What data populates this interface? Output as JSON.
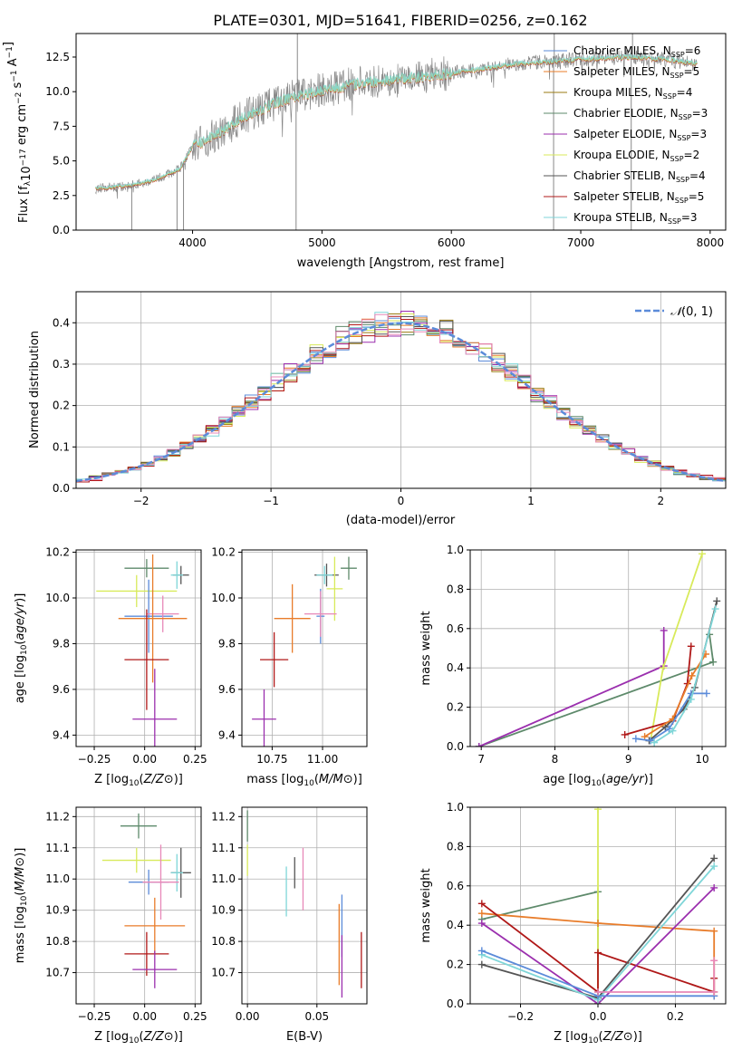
{
  "colors": {
    "chabrier_miles": "#5b8bd9",
    "salpeter_miles": "#e87c2a",
    "kroupa_miles": "#9a7a10",
    "chabrier_elodie": "#5e8a6b",
    "salpeter_elodie": "#9b2fae",
    "kroupa_elodie": "#d8ea5a",
    "chabrier_stelib": "#555555",
    "salpeter_stelib": "#b01818",
    "kroupa_stelib": "#7fd6d8",
    "pink": "#e888b8",
    "data_gray": "#888888",
    "gauss": "#5b8bd9"
  },
  "chart_data": [
    {
      "id": "spectrum",
      "type": "line",
      "title": "PLATE=0301, MJD=51641, FIBERID=0256, z=0.162",
      "xlabel": "wavelength [Angstrom, rest frame]",
      "ylabel_parts": [
        "Flux [f",
        "λ",
        "10",
        "−17",
        " erg cm",
        "−2",
        " s",
        "−1",
        " A",
        "−1",
        "]"
      ],
      "xlim": [
        3100,
        8120
      ],
      "ylim": [
        0,
        14.2
      ],
      "xticks": [
        4000,
        5000,
        6000,
        7000,
        8000
      ],
      "yticks": [
        "0.0",
        "2.5",
        "5.0",
        "7.5",
        "10.0",
        "12.5"
      ],
      "ytick_values": [
        0,
        2.5,
        5,
        7.5,
        10,
        12.5
      ],
      "grid": false,
      "legend": "top-right",
      "legend_entries": [
        {
          "label": "Chabrier MILES, N",
          "sub": "SSP",
          "tail": "=6",
          "color": "#5b8bd9"
        },
        {
          "label": "Salpeter MILES, N",
          "sub": "SSP",
          "tail": "=5",
          "color": "#e87c2a"
        },
        {
          "label": "Kroupa MILES, N",
          "sub": "SSP",
          "tail": "=4",
          "color": "#9a7a10"
        },
        {
          "label": "Chabrier ELODIE, N",
          "sub": "SSP",
          "tail": "=3",
          "color": "#5e8a6b"
        },
        {
          "label": "Salpeter ELODIE, N",
          "sub": "SSP",
          "tail": "=3",
          "color": "#9b2fae"
        },
        {
          "label": "Kroupa ELODIE, N",
          "sub": "SSP",
          "tail": "=2",
          "color": "#d8ea5a"
        },
        {
          "label": "Chabrier STELIB, N",
          "sub": "SSP",
          "tail": "=4",
          "color": "#555555"
        },
        {
          "label": "Salpeter STELIB, N",
          "sub": "SSP",
          "tail": "=5",
          "color": "#b01818"
        },
        {
          "label": "Kroupa STELIB, N",
          "sub": "SSP",
          "tail": "=3",
          "color": "#7fd6d8"
        }
      ],
      "continuum": {
        "x": [
          3250,
          3500,
          3700,
          3900,
          4000,
          4200,
          4400,
          4700,
          5000,
          5300,
          5600,
          5900,
          6200,
          6500,
          6800,
          7100,
          7400,
          7700,
          7900
        ],
        "y": [
          3.0,
          3.2,
          3.6,
          4.4,
          6.0,
          7.0,
          8.2,
          9.4,
          10.1,
          10.6,
          10.9,
          11.2,
          11.6,
          12.0,
          12.2,
          12.4,
          12.5,
          12.3,
          12.0
        ]
      },
      "spikes": [
        {
          "x": 3530,
          "y": 0
        },
        {
          "x": 3880,
          "y": 0
        },
        {
          "x": 3930,
          "y": 0
        },
        {
          "x": 4800,
          "y": 0
        },
        {
          "x": 4810,
          "y": 14.2
        },
        {
          "x": 6790,
          "y": 0
        },
        {
          "x": 6795,
          "y": 14.2
        },
        {
          "x": 7390,
          "y": 0
        },
        {
          "x": 7400,
          "y": 14.2
        }
      ]
    },
    {
      "id": "residuals",
      "type": "line",
      "xlabel": "(data-model)/error",
      "ylabel": "Normed distribution",
      "xlim": [
        -2.5,
        2.5
      ],
      "ylim": [
        0,
        0.475
      ],
      "xticks": [
        "−2",
        "−1",
        "0",
        "1",
        "2"
      ],
      "xtick_values": [
        -2,
        -1,
        0,
        1,
        2
      ],
      "yticks": [
        "0.0",
        "0.1",
        "0.2",
        "0.3",
        "0.4"
      ],
      "ytick_values": [
        0,
        0.1,
        0.2,
        0.3,
        0.4
      ],
      "grid": true,
      "legend": "top-right",
      "gauss_label": "𝒩(0, 1)",
      "gauss_label_text": "(0, 1)",
      "bin_width": 0.1
    },
    {
      "id": "age_vs_Z",
      "type": "scatter",
      "xlabel": "Z [log10(Z/Z⊙)]",
      "ylabel": "age  [log10(age/yr)]",
      "xlim": [
        -0.34,
        0.28
      ],
      "ylim": [
        9.35,
        10.21
      ],
      "xticks": [
        "−0.25",
        "0.00",
        "0.25"
      ],
      "xtick_values": [
        -0.25,
        0,
        0.25
      ],
      "yticks": [
        "9.4",
        "9.6",
        "9.8",
        "10.0",
        "10.2"
      ],
      "ytick_values": [
        9.4,
        9.6,
        9.8,
        10.0,
        10.2
      ],
      "grid": true,
      "points": [
        {
          "x": 0.01,
          "y": 10.13,
          "xerr": 0.11,
          "yerr": 0.04,
          "color": "#5e8a6b"
        },
        {
          "x": 0.18,
          "y": 10.1,
          "xerr": 0.04,
          "yerr": 0.04,
          "color": "#555555"
        },
        {
          "x": 0.16,
          "y": 10.1,
          "xerr": 0.03,
          "yerr": 0.06,
          "color": "#7fd6d8"
        },
        {
          "x": -0.04,
          "y": 10.03,
          "xerr": 0.2,
          "yerr": 0.07,
          "color": "#d8ea5a"
        },
        {
          "x": 0.02,
          "y": 9.92,
          "xerr": 0.12,
          "yerr": 0.16,
          "color": "#5b8bd9"
        },
        {
          "x": 0.09,
          "y": 9.93,
          "xerr": 0.08,
          "yerr": 0.08,
          "color": "#e888b8"
        },
        {
          "x": 0.04,
          "y": 9.91,
          "xerr": 0.17,
          "yerr": 0.28,
          "color": "#e87c2a"
        },
        {
          "x": 0.01,
          "y": 9.73,
          "xerr": 0.11,
          "yerr": 0.22,
          "color": "#b01818"
        },
        {
          "x": 0.05,
          "y": 9.47,
          "xerr": 0.11,
          "yerr": 0.22,
          "color": "#9b2fae"
        }
      ]
    },
    {
      "id": "age_vs_mass",
      "type": "scatter",
      "xlabel": "mass [log10(M/M⊙)]",
      "xlim": [
        10.6,
        11.22
      ],
      "ylim": [
        9.35,
        10.21
      ],
      "xticks": [
        "10.75",
        "11.00"
      ],
      "xtick_values": [
        10.75,
        11.0
      ],
      "yticks": [
        "9.4",
        "9.6",
        "9.8",
        "10.0",
        "10.2"
      ],
      "ytick_values": [
        9.4,
        9.6,
        9.8,
        10.0,
        10.2
      ],
      "grid": true,
      "points": [
        {
          "x": 11.13,
          "y": 10.13,
          "xerr": 0.04,
          "yerr": 0.05,
          "color": "#5e8a6b"
        },
        {
          "x": 11.02,
          "y": 10.1,
          "xerr": 0.06,
          "yerr": 0.05,
          "color": "#555555"
        },
        {
          "x": 11.01,
          "y": 10.1,
          "xerr": 0.04,
          "yerr": 0.04,
          "color": "#7fd6d8"
        },
        {
          "x": 11.06,
          "y": 10.04,
          "xerr": 0.04,
          "yerr": 0.14,
          "color": "#d8ea5a"
        },
        {
          "x": 10.99,
          "y": 9.92,
          "xerr": 0.02,
          "yerr": 0.12,
          "color": "#5b8bd9"
        },
        {
          "x": 10.99,
          "y": 9.93,
          "xerr": 0.08,
          "yerr": 0.1,
          "color": "#e888b8"
        },
        {
          "x": 10.85,
          "y": 9.91,
          "xerr": 0.09,
          "yerr": 0.15,
          "color": "#e87c2a"
        },
        {
          "x": 10.76,
          "y": 9.73,
          "xerr": 0.07,
          "yerr": 0.12,
          "color": "#b01818"
        },
        {
          "x": 10.71,
          "y": 9.47,
          "xerr": 0.06,
          "yerr": 0.13,
          "color": "#9b2fae"
        }
      ]
    },
    {
      "id": "weight_vs_age",
      "type": "line",
      "xlabel": "age  [log10(age/yr)]",
      "ylabel": "mass weight",
      "xlim": [
        6.85,
        10.32
      ],
      "ylim": [
        0,
        1.0
      ],
      "xticks": [
        "7",
        "8",
        "9",
        "10"
      ],
      "xtick_values": [
        7,
        8,
        9,
        10
      ],
      "yticks": [
        "0.0",
        "0.2",
        "0.4",
        "0.6",
        "0.8",
        "1.0"
      ],
      "ytick_values": [
        0,
        0.2,
        0.4,
        0.6,
        0.8,
        1.0
      ],
      "grid": true,
      "series": [
        {
          "color": "#5e8a6b",
          "x": [
            6.97,
            10.15,
            10.1
          ],
          "y": [
            0.0,
            0.43,
            0.57
          ]
        },
        {
          "color": "#9b2fae",
          "x": [
            6.97,
            9.48,
            9.48
          ],
          "y": [
            0.0,
            0.41,
            0.59
          ]
        },
        {
          "color": "#d8ea5a",
          "x": [
            9.3,
            9.47,
            10.0
          ],
          "y": [
            0.03,
            0.4,
            0.98
          ]
        },
        {
          "color": "#b01818",
          "x": [
            8.95,
            9.6,
            9.8,
            9.85
          ],
          "y": [
            0.06,
            0.13,
            0.32,
            0.51
          ]
        },
        {
          "color": "#555555",
          "x": [
            9.28,
            9.5,
            9.75,
            9.9,
            10.2
          ],
          "y": [
            0.03,
            0.1,
            0.19,
            0.3,
            0.74
          ]
        },
        {
          "color": "#e87c2a",
          "x": [
            9.22,
            9.6,
            9.86,
            10.05
          ],
          "y": [
            0.05,
            0.14,
            0.36,
            0.47
          ]
        },
        {
          "color": "#5b8bd9",
          "x": [
            9.1,
            9.3,
            9.55,
            9.85,
            10.06
          ],
          "y": [
            0.04,
            0.03,
            0.09,
            0.27,
            0.27
          ]
        },
        {
          "color": "#7fd6d8",
          "x": [
            9.35,
            9.6,
            9.85,
            10.18
          ],
          "y": [
            0.02,
            0.08,
            0.24,
            0.7
          ]
        }
      ]
    },
    {
      "id": "mass_vs_Z",
      "type": "scatter",
      "xlabel": "Z [log10(Z/Z⊙)]",
      "ylabel": "mass [log10(M/M⊙)]",
      "xlim": [
        -0.34,
        0.28
      ],
      "ylim": [
        10.6,
        11.23
      ],
      "xticks": [
        "−0.25",
        "0.00",
        "0.25"
      ],
      "xtick_values": [
        -0.25,
        0,
        0.25
      ],
      "yticks": [
        "10.7",
        "10.8",
        "10.9",
        "11.0",
        "11.1",
        "11.2"
      ],
      "ytick_values": [
        10.7,
        10.8,
        10.9,
        11.0,
        11.1,
        11.2
      ],
      "grid": true,
      "points": [
        {
          "x": -0.03,
          "y": 11.17,
          "xerr": 0.09,
          "yerr": 0.04,
          "color": "#5e8a6b"
        },
        {
          "x": 0.18,
          "y": 11.02,
          "xerr": 0.05,
          "yerr": 0.08,
          "color": "#555555"
        },
        {
          "x": 0.16,
          "y": 11.02,
          "xerr": 0.03,
          "yerr": 0.06,
          "color": "#7fd6d8"
        },
        {
          "x": -0.04,
          "y": 11.06,
          "xerr": 0.17,
          "yerr": 0.04,
          "color": "#d8ea5a"
        },
        {
          "x": 0.02,
          "y": 10.99,
          "xerr": 0.1,
          "yerr": 0.04,
          "color": "#5b8bd9"
        },
        {
          "x": 0.08,
          "y": 10.99,
          "xerr": 0.09,
          "yerr": 0.12,
          "color": "#e888b8"
        },
        {
          "x": 0.05,
          "y": 10.85,
          "xerr": 0.15,
          "yerr": 0.09,
          "color": "#e87c2a"
        },
        {
          "x": 0.01,
          "y": 10.76,
          "xerr": 0.11,
          "yerr": 0.07,
          "color": "#b01818"
        },
        {
          "x": 0.05,
          "y": 10.71,
          "xerr": 0.11,
          "yerr": 0.06,
          "color": "#9b2fae"
        }
      ]
    },
    {
      "id": "mass_vs_ebv",
      "type": "scatter",
      "xlabel": "E(B-V)",
      "xlim": [
        -0.004,
        0.086
      ],
      "ylim": [
        10.6,
        11.23
      ],
      "xticks": [
        "0.00",
        "0.05"
      ],
      "xtick_values": [
        0,
        0.05
      ],
      "yticks": [
        "10.7",
        "10.8",
        "10.9",
        "11.0",
        "11.1",
        "11.2"
      ],
      "ytick_values": [
        10.7,
        10.8,
        10.9,
        11.0,
        11.1,
        11.2
      ],
      "grid": true,
      "points": [
        {
          "x": 0.0,
          "y": 11.17,
          "xerr": 0,
          "yerr": 0.05,
          "color": "#5e8a6b"
        },
        {
          "x": 0.0,
          "y": 11.06,
          "xerr": 0,
          "yerr": 0.05,
          "color": "#d8ea5a"
        },
        {
          "x": 0.034,
          "y": 11.02,
          "xerr": 0,
          "yerr": 0.05,
          "color": "#555555"
        },
        {
          "x": 0.028,
          "y": 10.96,
          "xerr": 0,
          "yerr": 0.08,
          "color": "#7fd6d8"
        },
        {
          "x": 0.04,
          "y": 11.0,
          "xerr": 0,
          "yerr": 0.1,
          "color": "#e888b8"
        },
        {
          "x": 0.068,
          "y": 10.85,
          "xerr": 0,
          "yerr": 0.1,
          "color": "#5b8bd9"
        },
        {
          "x": 0.066,
          "y": 10.79,
          "xerr": 0,
          "yerr": 0.13,
          "color": "#e87c2a"
        },
        {
          "x": 0.068,
          "y": 10.72,
          "xerr": 0,
          "yerr": 0.1,
          "color": "#9b2fae"
        },
        {
          "x": 0.082,
          "y": 10.74,
          "xerr": 0,
          "yerr": 0.09,
          "color": "#b01818"
        }
      ]
    },
    {
      "id": "weight_vs_Z",
      "type": "line",
      "xlabel": "Z [log10(Z/Z⊙)]",
      "ylabel": "mass weight",
      "xlim": [
        -0.33,
        0.33
      ],
      "ylim": [
        0,
        1.0
      ],
      "xticks": [
        "−0.2",
        "0.0",
        "0.2"
      ],
      "xtick_values": [
        -0.2,
        0,
        0.2
      ],
      "yticks": [
        "0.0",
        "0.2",
        "0.4",
        "0.6",
        "0.8",
        "1.0"
      ],
      "ytick_values": [
        0,
        0.2,
        0.4,
        0.6,
        0.8,
        1.0
      ],
      "grid": true,
      "series": [
        {
          "color": "#5e8a6b",
          "x": [
            -0.3,
            0.0,
            0.0
          ],
          "y": [
            0.43,
            0.57,
            0.0
          ]
        },
        {
          "color": "#d8ea5a",
          "x": [
            0.0,
            0.0
          ],
          "y": [
            0.0,
            0.99
          ]
        },
        {
          "color": "#e87c2a",
          "x": [
            -0.3,
            0.0,
            0.3,
            0.3
          ],
          "y": [
            0.46,
            0.41,
            0.37,
            0.04
          ]
        },
        {
          "color": "#b01818",
          "x": [
            -0.3,
            0.0,
            0.0,
            0.3,
            0.3
          ],
          "y": [
            0.51,
            0.06,
            0.26,
            0.06,
            0.13
          ]
        },
        {
          "color": "#9b2fae",
          "x": [
            -0.3,
            0.0,
            0.3
          ],
          "y": [
            0.41,
            0.0,
            0.59
          ]
        },
        {
          "color": "#555555",
          "x": [
            -0.3,
            0.0,
            0.3
          ],
          "y": [
            0.2,
            0.03,
            0.74
          ]
        },
        {
          "color": "#7fd6d8",
          "x": [
            -0.3,
            0.0,
            0.3
          ],
          "y": [
            0.25,
            0.02,
            0.7
          ]
        },
        {
          "color": "#5b8bd9",
          "x": [
            -0.3,
            0.0,
            0.3
          ],
          "y": [
            0.27,
            0.04,
            0.04
          ]
        },
        {
          "color": "#e888b8",
          "x": [
            0.0,
            0.3,
            0.3
          ],
          "y": [
            0.06,
            0.06,
            0.22
          ]
        }
      ]
    }
  ]
}
